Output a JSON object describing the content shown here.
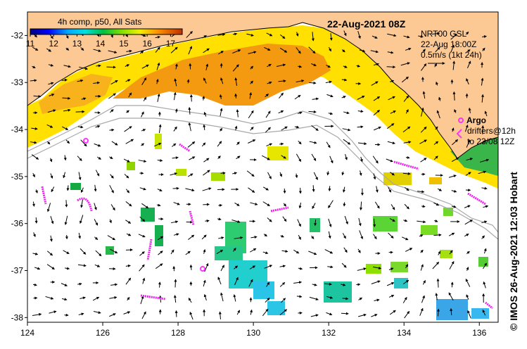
{
  "map": {
    "date_title": "22-Aug-2021 08Z",
    "colorbar": {
      "title": "4h comp, p50, All Sats",
      "ticks": [
        "11",
        "12",
        "13",
        "14",
        "15",
        "16",
        "17"
      ],
      "range": [
        11,
        17.5
      ]
    },
    "current_legend": {
      "source": "NRT00 GSL",
      "time": "22-Aug 18:00Z",
      "scale": "0.5m/s (1kt 24h)"
    },
    "argo_legend": {
      "argo_label": "Argo",
      "drifters_label": "drifters@12h",
      "drifters_to": "to 23/08 12Z"
    },
    "axes": {
      "lon_labels": [
        "124",
        "126",
        "128",
        "130",
        "132",
        "134",
        "136"
      ],
      "lat_labels": [
        "-32",
        "-33",
        "-34",
        "-35",
        "-36",
        "-37",
        "-38"
      ],
      "lon_range": [
        124,
        136.5
      ],
      "lat_range": [
        -31.5,
        -38.1
      ]
    },
    "credit": "© IMOS 26-Aug-2021 12:03 Hobart",
    "colors": {
      "land": "#fcc994",
      "argo": "#ff33ff",
      "drifter": "#ee22ee",
      "bathymetry": "#a8a8a8"
    }
  }
}
